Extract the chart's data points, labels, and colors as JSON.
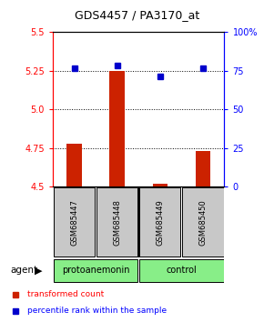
{
  "title": "GDS4457 / PA3170_at",
  "samples": [
    "GSM685447",
    "GSM685448",
    "GSM685449",
    "GSM685450"
  ],
  "red_values": [
    4.78,
    5.25,
    4.52,
    4.73
  ],
  "blue_values": [
    5.265,
    5.285,
    5.215,
    5.265
  ],
  "ylim_left": [
    4.5,
    5.5
  ],
  "ylim_right": [
    0,
    100
  ],
  "yticks_left": [
    4.5,
    4.75,
    5.0,
    5.25,
    5.5
  ],
  "yticks_right": [
    0,
    25,
    50,
    75,
    100
  ],
  "hlines": [
    4.75,
    5.0,
    5.25
  ],
  "bar_color": "#CC2200",
  "dot_color": "#0000CC",
  "bar_width": 0.35,
  "group_label": "agent",
  "legend_red": "transformed count",
  "legend_blue": "percentile rank within the sample",
  "sample_box_color": "#C8C8C8",
  "green_color": "#88EE88",
  "fig_bg": "#FFFFFF",
  "group_info": [
    [
      1,
      2,
      "protoanemonin"
    ],
    [
      3,
      4,
      "control"
    ]
  ]
}
